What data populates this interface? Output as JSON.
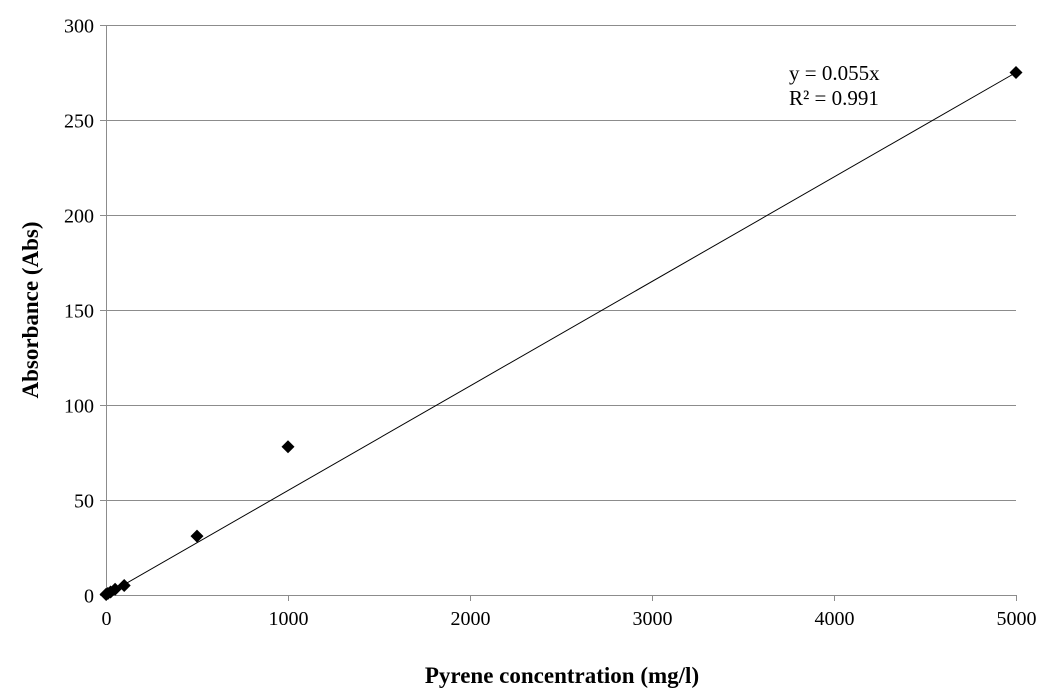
{
  "chart_data": {
    "type": "scatter",
    "title": "",
    "xlabel": "Pyrene concentration (mg/l)",
    "ylabel": "Absorbance (Abs)",
    "xlim": [
      0,
      5000
    ],
    "ylim": [
      0,
      300
    ],
    "x_ticks": [
      0,
      1000,
      2000,
      3000,
      4000,
      5000
    ],
    "y_ticks": [
      0,
      50,
      100,
      150,
      200,
      250,
      300
    ],
    "x_tick_labels": [
      "0",
      "1000",
      "2000",
      "3000",
      "4000",
      "5000"
    ],
    "y_tick_labels": [
      "0",
      "50",
      "100",
      "150",
      "200",
      "250",
      "300"
    ],
    "grid": "horizontal",
    "series": [
      {
        "marker": "diamond",
        "color": "#000000",
        "x": [
          0,
          10,
          25,
          50,
          100,
          500,
          1000,
          5000
        ],
        "y": [
          0.3,
          0.8,
          1.6,
          3.0,
          5.0,
          31,
          78,
          275
        ]
      }
    ],
    "trendline": {
      "type": "linear",
      "slope": 0.055,
      "intercept": 0,
      "x_range": [
        0,
        5000
      ],
      "equation_label": "y = 0.055x",
      "r2_label": "R² = 0.991"
    }
  }
}
